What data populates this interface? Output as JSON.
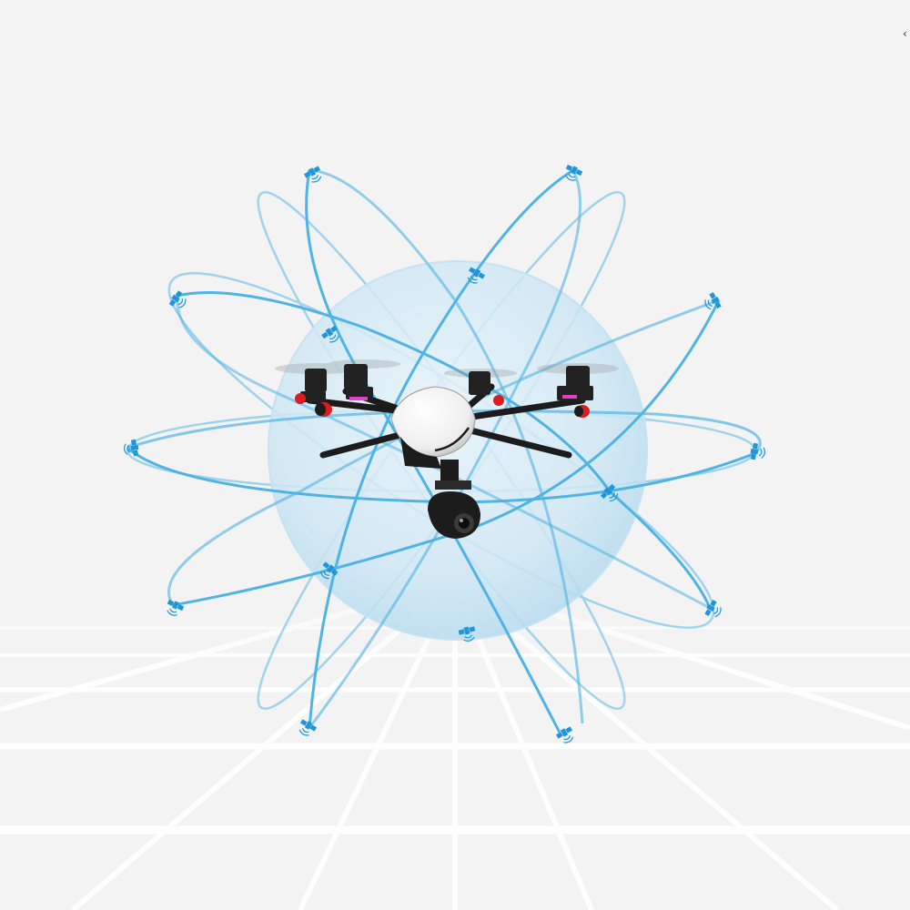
{
  "scene": {
    "subject": "hexacopter-drone",
    "satellite_icon": "satellite-icon",
    "satellite_count": 16,
    "orbit_count": 4,
    "colors": {
      "background": "#f3f3f3",
      "floor_grid": "#ffffff",
      "orbit": "#5ab8e6",
      "satellite": "#1e96d8",
      "sphere": "#bfe0f0",
      "drone_body": "#ffffff",
      "drone_frame": "#1c1c1c",
      "motor_accent_red": "#d81e1e",
      "motor_accent_pink": "#e040c8"
    }
  }
}
